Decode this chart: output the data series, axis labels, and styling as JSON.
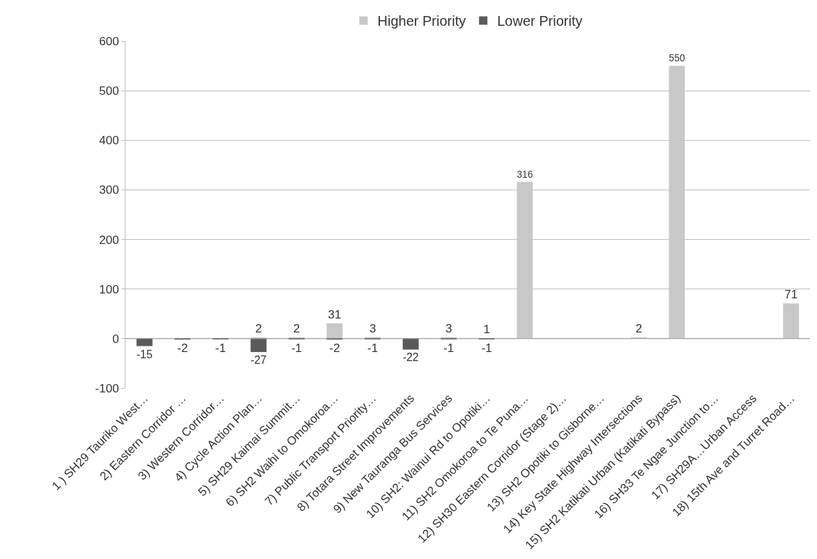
{
  "chart_data": {
    "type": "bar",
    "stacked": true,
    "categories": [
      "1 ) SH29 Tauriko West…",
      "2) Eastern Corridor …",
      "3) Western Corridor…",
      "4) Cycle Action Plan…",
      "5) SH29 Kaimai Summit…",
      "6) SH2 Waihi to Omokoroa…",
      "7) Public Transport Priority…",
      "8) Totara Street Improvements",
      "9) New Tauranga Bus Services",
      "10) SH2: Wainui Rd to Opotiki…",
      "11) SH2 Omokoroa to Te Puna…",
      "12) SH30 Eastern Corridor (Stage 2)…",
      "13) SH2 Opotiki to Gisborne…",
      "14) Key State Highway Intersections",
      "15) SH2 Katikati Urban (Katikati Bypass)",
      "16) SH33 Te Ngae Junction to…",
      "17) SH29A…Urban Access",
      "18) 15th Ave and Turret Road…"
    ],
    "series": [
      {
        "name": "Higher Priority",
        "color": "#c8c8c8",
        "values": [
          null,
          null,
          null,
          2,
          2,
          31,
          3,
          null,
          3,
          1,
          316,
          null,
          null,
          2,
          550,
          null,
          null,
          71
        ]
      },
      {
        "name": "Lower Priority",
        "color": "#5a5a5a",
        "values": [
          -15,
          -2,
          -1,
          -27,
          -1,
          -2,
          -1,
          -22,
          -1,
          -1,
          null,
          null,
          null,
          null,
          null,
          null,
          null,
          null
        ]
      }
    ],
    "ylim": [
      -100,
      600
    ],
    "yticks": [
      -100,
      0,
      100,
      200,
      300,
      400,
      500,
      600
    ],
    "grid": "y",
    "legend": "top",
    "data_labels": true
  }
}
